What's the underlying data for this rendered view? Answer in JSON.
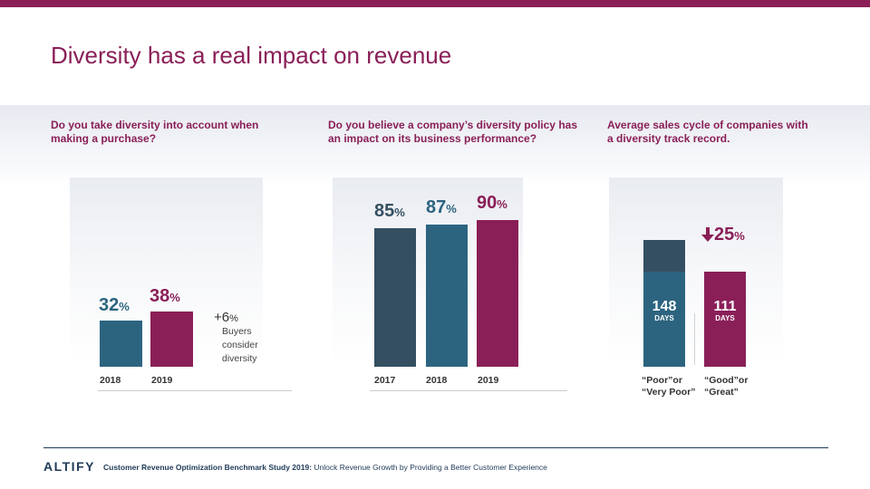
{
  "page": {
    "title": "Diversity has a real impact on revenue"
  },
  "colors": {
    "accent": "#8a1f58",
    "teal": "#2c6480",
    "slate": "#344f61",
    "navy": "#1f3a57"
  },
  "chart_data": [
    {
      "type": "bar",
      "title": "Do you take diversity into account when making a purchase?",
      "categories": [
        "2018",
        "2019"
      ],
      "values": [
        32,
        38
      ],
      "value_labels": [
        "32",
        "38"
      ],
      "unit": "%",
      "ylim": [
        0,
        100
      ],
      "annotation": {
        "plus": "+6",
        "unit": "%",
        "lines": [
          "Buyers",
          "consider",
          "diversity"
        ]
      }
    },
    {
      "type": "bar",
      "title": "Do you believe a company’s diversity policy has an impact on its business performance?",
      "categories": [
        "2017",
        "2018",
        "2019"
      ],
      "values": [
        85,
        87,
        90
      ],
      "value_labels": [
        "85",
        "87",
        "90"
      ],
      "unit": "%",
      "ylim": [
        0,
        100
      ]
    },
    {
      "type": "bar",
      "title": "Average sales cycle of companies with a diversity track record.",
      "categories": [
        [
          "“Poor”or",
          "“Very Poor”"
        ],
        [
          "“Good”or",
          "“Great”"
        ]
      ],
      "values": [
        148,
        111
      ],
      "value_labels": [
        "148",
        "111"
      ],
      "unit_label": "DAYS",
      "ylim": [
        0,
        180
      ],
      "annotation": {
        "value": "25",
        "unit": "%",
        "direction": "down"
      }
    }
  ],
  "footer": {
    "logo": "ALTIFY",
    "study": "Customer Revenue Optimization Benchmark Study 2019:",
    "tagline": "Unlock Revenue Growth by Providing a Better Customer Experience"
  }
}
